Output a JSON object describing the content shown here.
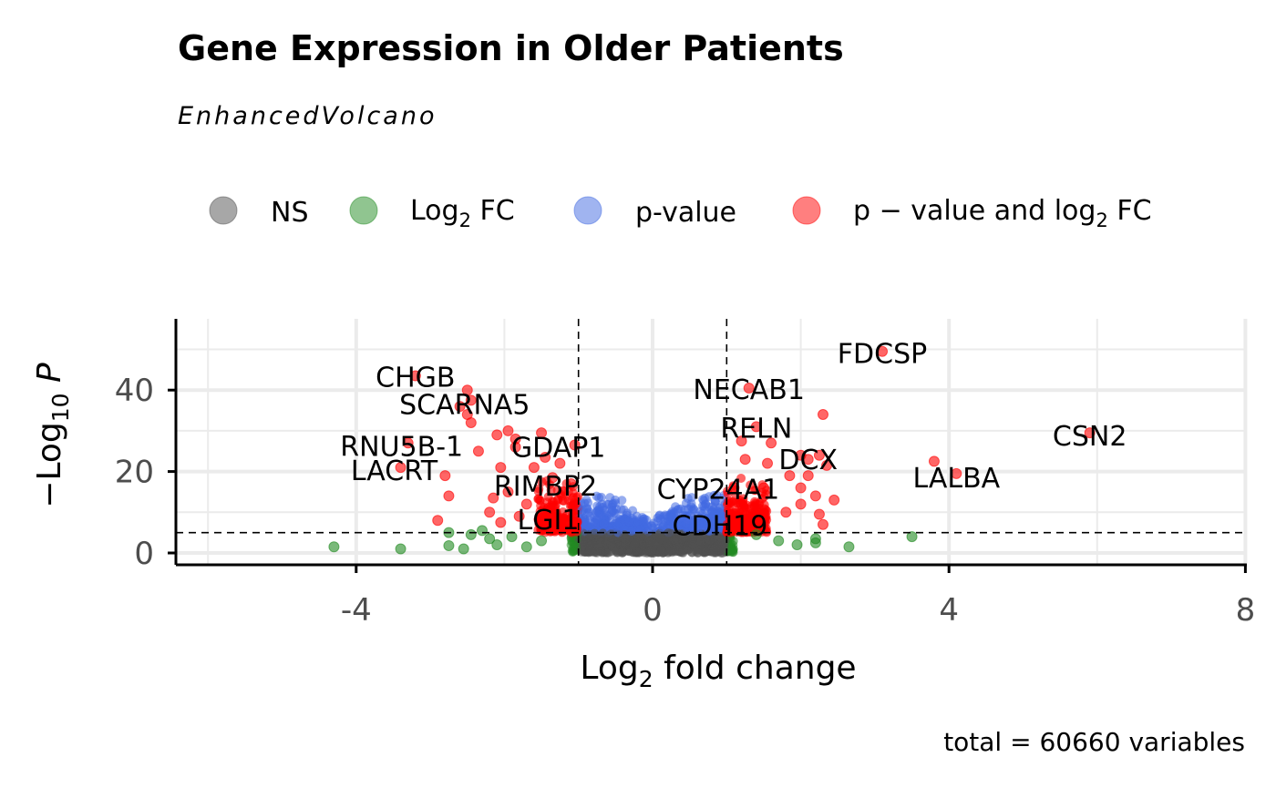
{
  "chart_data": {
    "type": "scatter",
    "title": "Gene Expression in Older Patients",
    "subtitle": "EnhancedVolcano",
    "caption": "total = 60660 variables",
    "xlabel": "Log2 fold change",
    "ylabel": "−Log10 P",
    "xlim": [
      -6.4,
      8
    ],
    "ylim": [
      -3,
      57
    ],
    "x_ticks": [
      "-4",
      "0",
      "4",
      "8"
    ],
    "y_ticks": [
      "0",
      "20",
      "40"
    ],
    "x_tick_values": [
      -4,
      0,
      4,
      8
    ],
    "y_tick_values": [
      0,
      20,
      40
    ],
    "grid": true,
    "legend_position": "top",
    "cutoffs": {
      "log2fc": 1,
      "neg_log10_p": 5
    },
    "series": [
      {
        "name": "NS",
        "color": "#505050"
      },
      {
        "name": "Log2 FC",
        "color": "#228B22"
      },
      {
        "name": "p-value",
        "color": "#4169E1"
      },
      {
        "name": "p − value and log2 FC",
        "color": "#FF0000"
      }
    ],
    "labeled_points": [
      {
        "label": "FDCSP",
        "x": 3.1,
        "y": 49.5
      },
      {
        "label": "CHGB",
        "x": -3.2,
        "y": 43.5
      },
      {
        "label": "NECAB1",
        "x": 1.3,
        "y": 40.5
      },
      {
        "label": "SCARNA5",
        "x": -2.45,
        "y": 37.5
      },
      {
        "label": "RELN",
        "x": 1.4,
        "y": 31
      },
      {
        "label": "CSN2",
        "x": 5.9,
        "y": 29.5
      },
      {
        "label": "RNU5B-1",
        "x": -3.3,
        "y": 27
      },
      {
        "label": "GDAP1",
        "x": -1.05,
        "y": 26.5
      },
      {
        "label": "DCX",
        "x": 2.1,
        "y": 23
      },
      {
        "label": "LACRT",
        "x": -3.4,
        "y": 21
      },
      {
        "label": "LALBA",
        "x": 4.1,
        "y": 19.5
      },
      {
        "label": "RIMBP2",
        "x": -1.1,
        "y": 17
      },
      {
        "label": "CYP24A1",
        "x": 1.5,
        "y": 16
      },
      {
        "label": "LGI1",
        "x": -1.15,
        "y": 9
      },
      {
        "label": "CDH19",
        "x": 1.5,
        "y": 7.5
      }
    ],
    "other_points": [
      {
        "x": -2.5,
        "y": 40,
        "s": 3
      },
      {
        "x": -2.6,
        "y": 36,
        "s": 3
      },
      {
        "x": -2.5,
        "y": 34,
        "s": 3
      },
      {
        "x": -2.45,
        "y": 32,
        "s": 3
      },
      {
        "x": -2.1,
        "y": 29,
        "s": 3
      },
      {
        "x": -1.95,
        "y": 30,
        "s": 3
      },
      {
        "x": -1.5,
        "y": 29.5,
        "s": 3
      },
      {
        "x": -1.85,
        "y": 28,
        "s": 3
      },
      {
        "x": -2.35,
        "y": 25,
        "s": 3
      },
      {
        "x": -1.85,
        "y": 26,
        "s": 3
      },
      {
        "x": -1.45,
        "y": 23.5,
        "s": 3
      },
      {
        "x": -1.25,
        "y": 22,
        "s": 3
      },
      {
        "x": -2.05,
        "y": 21,
        "s": 3
      },
      {
        "x": -1.6,
        "y": 21,
        "s": 3
      },
      {
        "x": -2.8,
        "y": 19,
        "s": 3
      },
      {
        "x": -1.35,
        "y": 18.5,
        "s": 3
      },
      {
        "x": -2.75,
        "y": 14,
        "s": 3
      },
      {
        "x": -1.95,
        "y": 15,
        "s": 3
      },
      {
        "x": -2.15,
        "y": 13.5,
        "s": 3
      },
      {
        "x": -1.7,
        "y": 12,
        "s": 3
      },
      {
        "x": -2.2,
        "y": 10,
        "s": 3
      },
      {
        "x": -1.8,
        "y": 9,
        "s": 3
      },
      {
        "x": -2.9,
        "y": 8,
        "s": 3
      },
      {
        "x": -2.05,
        "y": 7.5,
        "s": 3
      },
      {
        "x": -1.4,
        "y": 11,
        "s": 3
      },
      {
        "x": -1.2,
        "y": 13,
        "s": 3
      },
      {
        "x": 2.3,
        "y": 34,
        "s": 3
      },
      {
        "x": 1.2,
        "y": 27.5,
        "s": 3
      },
      {
        "x": 1.6,
        "y": 27,
        "s": 3
      },
      {
        "x": 2.25,
        "y": 24,
        "s": 3
      },
      {
        "x": 2.0,
        "y": 24,
        "s": 3
      },
      {
        "x": 1.25,
        "y": 23,
        "s": 3
      },
      {
        "x": 2.35,
        "y": 21.5,
        "s": 3
      },
      {
        "x": 1.55,
        "y": 22,
        "s": 3
      },
      {
        "x": 2.1,
        "y": 19,
        "s": 3
      },
      {
        "x": 1.85,
        "y": 19,
        "s": 3
      },
      {
        "x": 2.0,
        "y": 16,
        "s": 3
      },
      {
        "x": 2.2,
        "y": 14,
        "s": 3
      },
      {
        "x": 2.45,
        "y": 13,
        "s": 3
      },
      {
        "x": 2.0,
        "y": 12,
        "s": 3
      },
      {
        "x": 1.8,
        "y": 10,
        "s": 3
      },
      {
        "x": 2.25,
        "y": 9.5,
        "s": 3
      },
      {
        "x": 2.3,
        "y": 7,
        "s": 3
      },
      {
        "x": 1.2,
        "y": 12,
        "s": 3
      },
      {
        "x": 1.1,
        "y": 16,
        "s": 3
      },
      {
        "x": 3.8,
        "y": 22.5,
        "s": 3
      },
      {
        "x": -4.3,
        "y": 1.5,
        "s": 1
      },
      {
        "x": -3.4,
        "y": 1,
        "s": 1
      },
      {
        "x": -2.75,
        "y": 5,
        "s": 1
      },
      {
        "x": -2.75,
        "y": 1.8,
        "s": 1
      },
      {
        "x": -2.55,
        "y": 1,
        "s": 1
      },
      {
        "x": -2.45,
        "y": 4.5,
        "s": 1
      },
      {
        "x": -2.3,
        "y": 5.5,
        "s": 1
      },
      {
        "x": -2.2,
        "y": 3.5,
        "s": 1
      },
      {
        "x": -2.1,
        "y": 2,
        "s": 1
      },
      {
        "x": -1.9,
        "y": 4,
        "s": 1
      },
      {
        "x": -1.7,
        "y": 1.5,
        "s": 1
      },
      {
        "x": -1.5,
        "y": 3,
        "s": 1
      },
      {
        "x": 1.7,
        "y": 3,
        "s": 1
      },
      {
        "x": 1.95,
        "y": 2,
        "s": 1
      },
      {
        "x": 2.2,
        "y": 3.5,
        "s": 1
      },
      {
        "x": 2.2,
        "y": 2.5,
        "s": 1
      },
      {
        "x": 2.65,
        "y": 1.5,
        "s": 1
      },
      {
        "x": 3.5,
        "y": 4,
        "s": 1
      },
      {
        "x": 1.4,
        "y": 4.5,
        "s": 1
      }
    ]
  }
}
